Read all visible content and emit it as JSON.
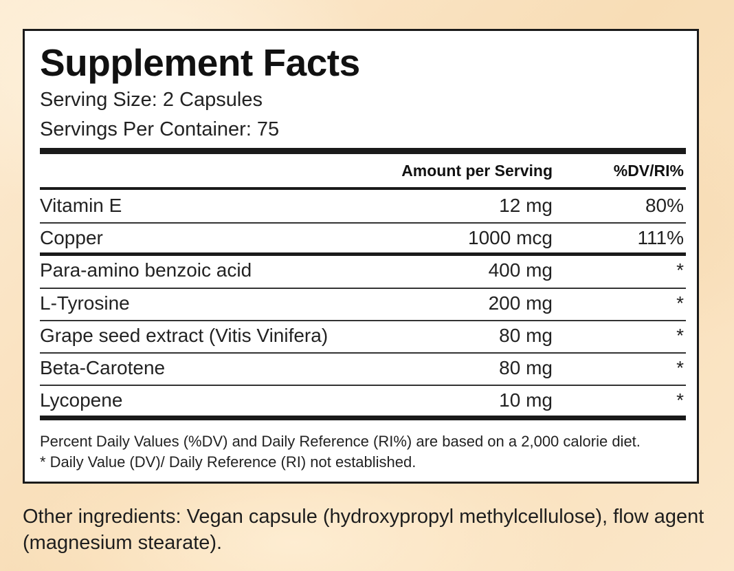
{
  "title": "Supplement Facts",
  "serving_size": "Serving Size: 2 Capsules",
  "servings_per_container": "Servings Per Container: 75",
  "columns": {
    "amount": "Amount per Serving",
    "dv": "%DV/RI%"
  },
  "rows": [
    {
      "name": "Vitamin E",
      "amount": "12 mg",
      "dv": "80%"
    },
    {
      "name": "Copper",
      "amount": "1000 mcg",
      "dv": "111%"
    },
    {
      "name": "Para-amino benzoic acid",
      "amount": "400 mg",
      "dv": "*"
    },
    {
      "name": "L-Tyrosine",
      "amount": "200 mg",
      "dv": "*"
    },
    {
      "name": "Grape seed extract (Vitis Vinifera)",
      "amount": "80 mg",
      "dv": "*"
    },
    {
      "name": "Beta-Carotene",
      "amount": "80 mg",
      "dv": "*"
    },
    {
      "name": "Lycopene",
      "amount": "10 mg",
      "dv": "*"
    }
  ],
  "footnotes": [
    "Percent Daily Values (%DV) and Daily Reference (RI%) are based on a 2,000 calorie diet.",
    "* Daily Value (DV)/ Daily Reference (RI) not established."
  ],
  "other_ingredients": "Other ingredients: Vegan capsule (hydroxypropyl methylcellulose), flow agent (magnesium stearate)."
}
